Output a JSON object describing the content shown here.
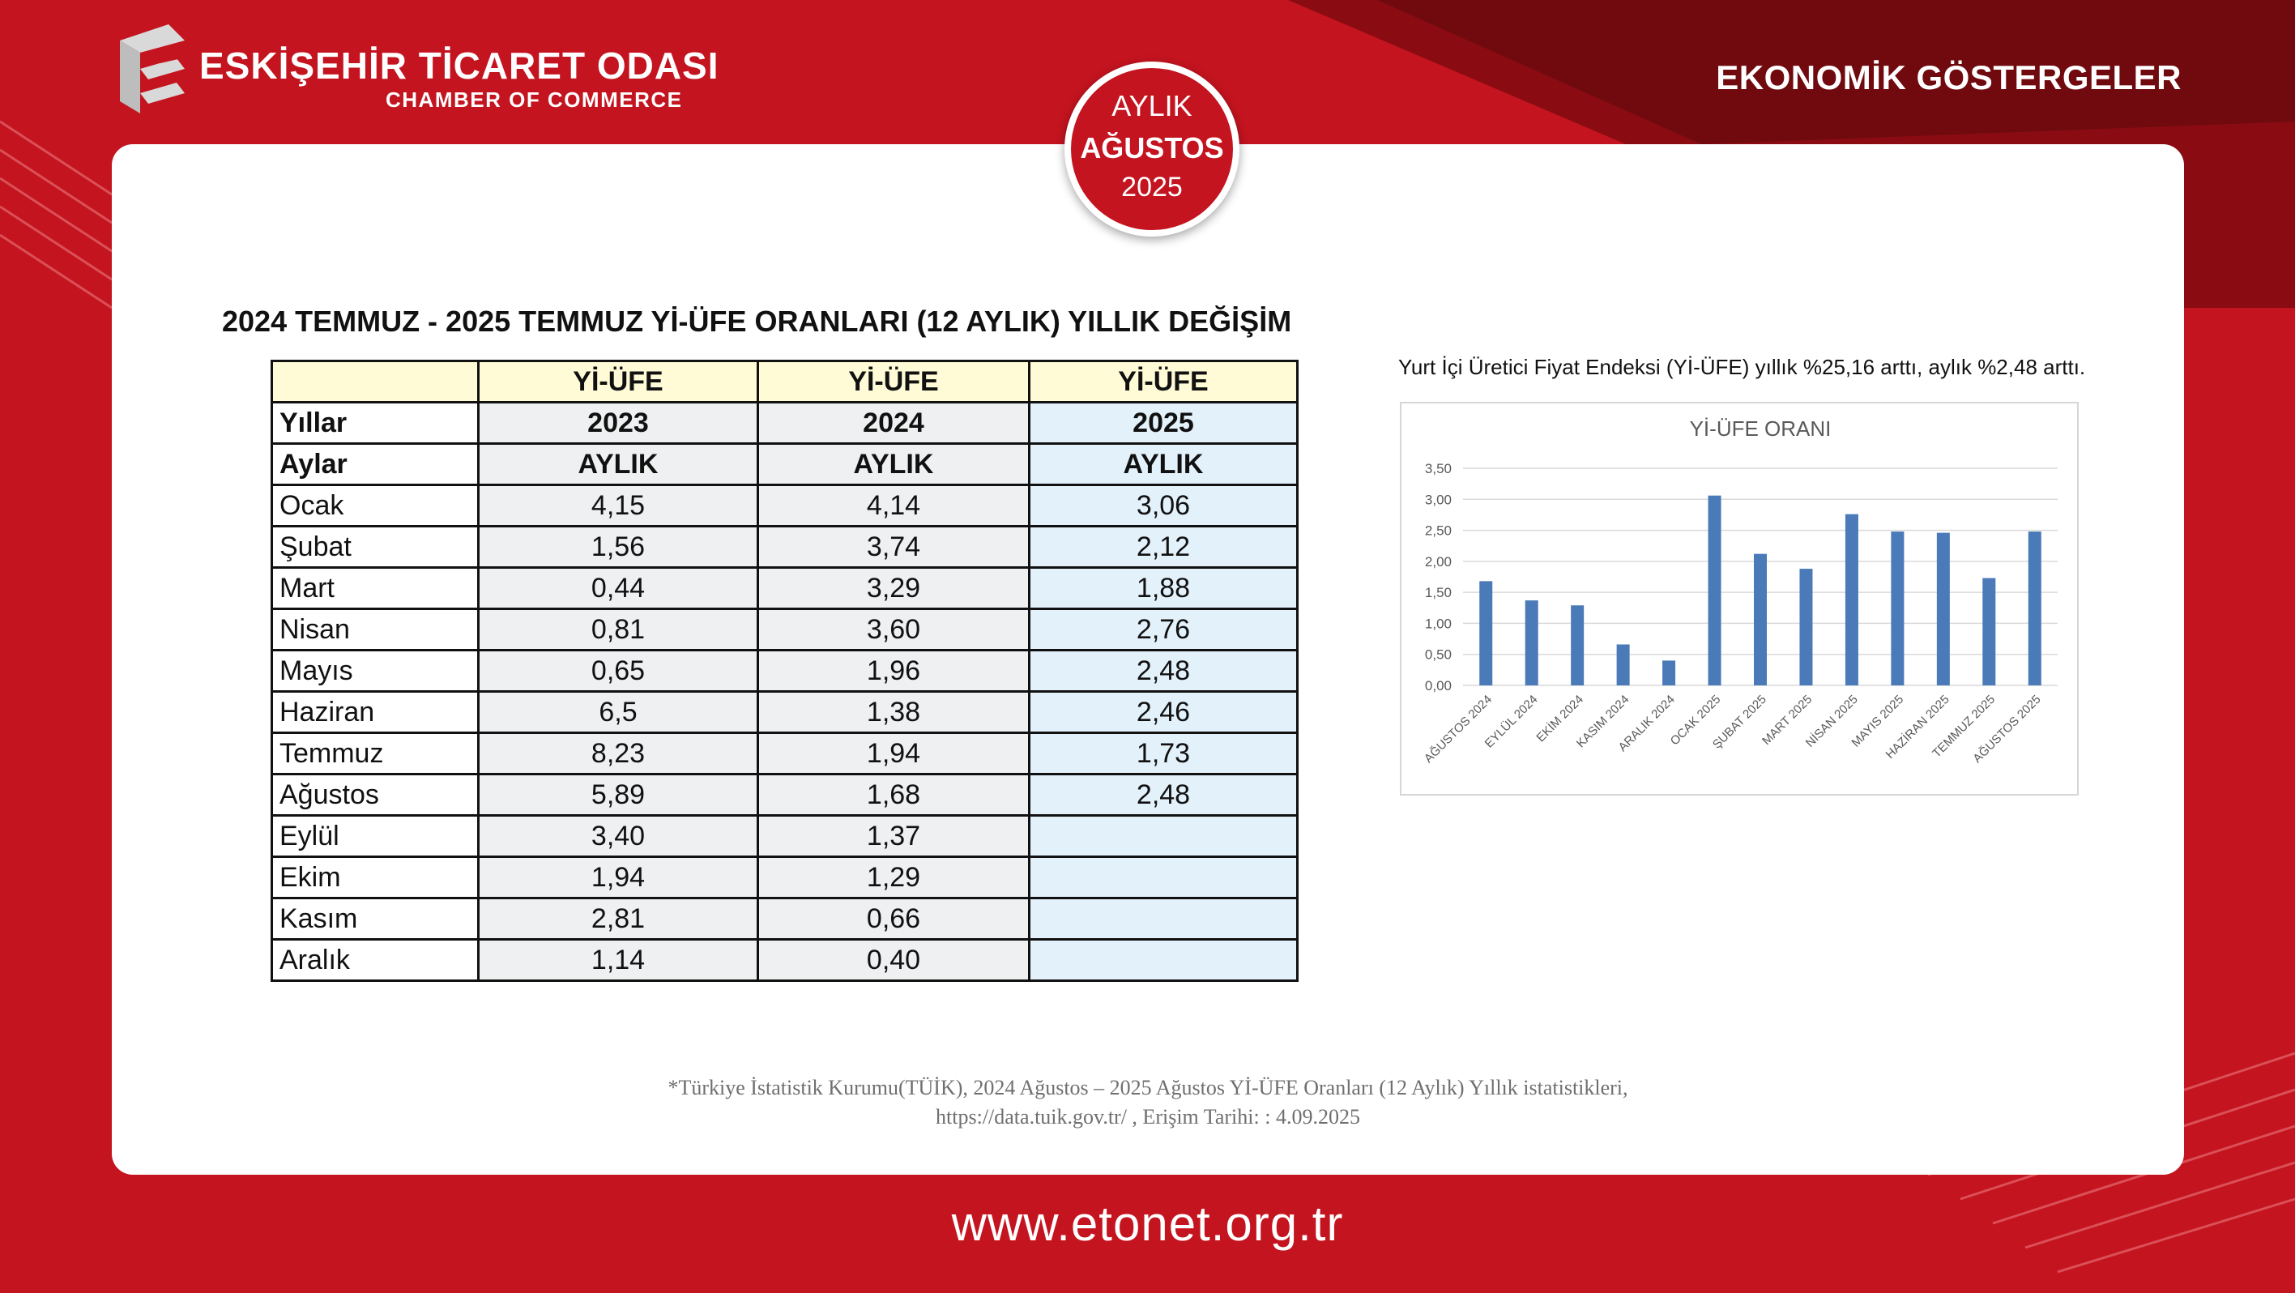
{
  "header": {
    "org_name": "ESKİŞEHİR TİCARET ODASI",
    "org_sub": "CHAMBER OF COMMERCE",
    "section_title": "EKONOMİK GÖSTERGELER"
  },
  "badge": {
    "line1": "AYLIK",
    "line2": "AĞUSTOS",
    "line3": "2025"
  },
  "table": {
    "title": "2024 TEMMUZ - 2025 TEMMUZ Yİ-ÜFE ORANLARI (12 AYLIK) YILLIK DEĞİŞİM",
    "header_row": [
      "",
      "Yİ-ÜFE",
      "Yİ-ÜFE",
      "Yİ-ÜFE"
    ],
    "years_row": [
      "Yıllar",
      "2023",
      "2024",
      "2025"
    ],
    "period_row": [
      "Aylar",
      "AYLIK",
      "AYLIK",
      "AYLIK"
    ],
    "rows": [
      [
        "Ocak",
        "4,15",
        "4,14",
        "3,06"
      ],
      [
        "Şubat",
        "1,56",
        "3,74",
        "2,12"
      ],
      [
        "Mart",
        "0,44",
        "3,29",
        "1,88"
      ],
      [
        "Nisan",
        "0,81",
        "3,60",
        "2,76"
      ],
      [
        "Mayıs",
        "0,65",
        "1,96",
        "2,48"
      ],
      [
        "Haziran",
        "6,5",
        "1,38",
        "2,46"
      ],
      [
        "Temmuz",
        "8,23",
        "1,94",
        "1,73"
      ],
      [
        "Ağustos",
        "5,89",
        "1,68",
        "2,48"
      ],
      [
        "Eylül",
        "3,40",
        "1,37",
        ""
      ],
      [
        "Ekim",
        "1,94",
        "1,29",
        ""
      ],
      [
        "Kasım",
        "2,81",
        "0,66",
        ""
      ],
      [
        "Aralık",
        "1,14",
        "0,40",
        ""
      ]
    ]
  },
  "chart_note": "Yurt İçi Üretici Fiyat Endeksi (Yİ-ÜFE) yıllık %25,16 arttı, aylık %2,48 arttı.",
  "chart_data": {
    "type": "bar",
    "title": "Yİ-ÜFE ORANI",
    "categories": [
      "AĞUSTOS 2024",
      "EYLÜL 2024",
      "EKİM 2024",
      "KASIM 2024",
      "ARALIK 2024",
      "OCAK 2025",
      "ŞUBAT 2025",
      "MART 2025",
      "NİSAN 2025",
      "MAYIS 2025",
      "HAZİRAN 2025",
      "TEMMUZ 2025",
      "AĞUSTOS 2025"
    ],
    "values": [
      1.68,
      1.37,
      1.29,
      0.66,
      0.4,
      3.06,
      2.12,
      1.88,
      2.76,
      2.48,
      2.46,
      1.73,
      2.48
    ],
    "ylim": [
      0,
      3.5
    ],
    "yticks": [
      "0,00",
      "0,50",
      "1,00",
      "1,50",
      "2,00",
      "2,50",
      "3,00",
      "3,50"
    ],
    "grid": true,
    "bar_color": "#4a7ab8"
  },
  "footnote": {
    "line1": "*Türkiye İstatistik Kurumu(TÜİK), 2024 Ağustos  – 2025 Ağustos Yİ-ÜFE Oranları (12 Aylık) Yıllık istatistikleri,",
    "line2": "https://data.tuik.gov.tr/ , Erişim Tarihi: : 4.09.2025"
  },
  "footer_url": "www.etonet.org.tr"
}
